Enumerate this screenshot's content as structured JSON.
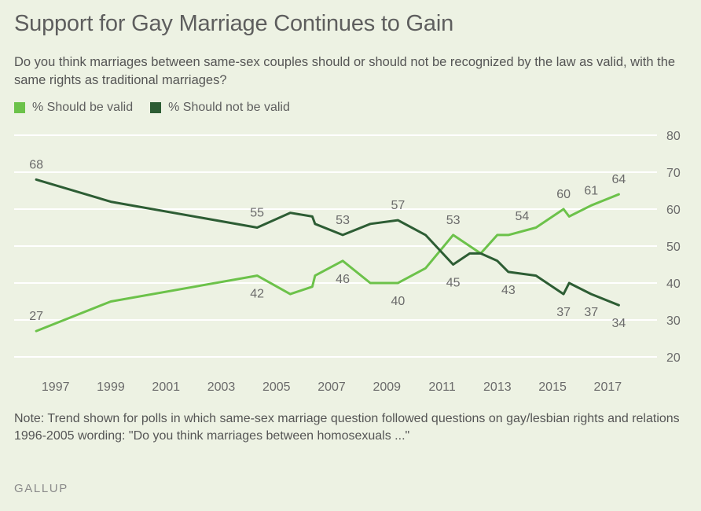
{
  "title": "Support for Gay Marriage Continues to Gain",
  "subtitle": "Do you think marriages between same-sex couples should or should not be recognized by the law as valid, with the same rights as traditional marriages?",
  "note_line1": "Note: Trend shown for polls in which same-sex marriage question followed questions on gay/lesbian rights and relations",
  "note_line2": "1996-2005 wording: \"Do you think marriages between homosexuals ...\"",
  "brand": "GALLUP",
  "colors": {
    "valid": "#6cc24a",
    "not_valid": "#2d5d34",
    "grid": "#ffffff",
    "text": "#555555"
  },
  "chart_data": {
    "type": "line",
    "title": "Support for Gay Marriage Continues to Gain",
    "xlabel": "",
    "ylabel": "",
    "xlim": [
      1995.5,
      2018.1
    ],
    "ylim": [
      20,
      80
    ],
    "y_ticks": [
      20,
      30,
      40,
      50,
      60,
      70,
      80
    ],
    "x_ticks": [
      1997,
      1999,
      2001,
      2003,
      2005,
      2007,
      2009,
      2011,
      2013,
      2015,
      2017
    ],
    "grid": true,
    "legend": "top-left",
    "series": [
      {
        "name": "% Should be valid",
        "color": "#6cc24a",
        "x": [
          1996.3,
          1999.0,
          2004.3,
          2005.5,
          2006.3,
          2006.4,
          2007.4,
          2008.4,
          2009.4,
          2010.4,
          2011.4,
          2012.4,
          2013.0,
          2013.4,
          2014.4,
          2015.4,
          2015.6,
          2016.4,
          2017.4
        ],
        "values": [
          27,
          35,
          42,
          37,
          39,
          42,
          46,
          40,
          40,
          44,
          53,
          48,
          53,
          53,
          55,
          60,
          58,
          61,
          64
        ]
      },
      {
        "name": "% Should not be valid",
        "color": "#2d5d34",
        "x": [
          1996.3,
          1999.0,
          2004.3,
          2005.5,
          2006.3,
          2006.4,
          2007.4,
          2008.4,
          2009.4,
          2010.4,
          2011.4,
          2012.0,
          2012.4,
          2013.0,
          2013.4,
          2014.4,
          2015.4,
          2015.6,
          2016.4,
          2017.4
        ],
        "values": [
          68,
          62,
          55,
          59,
          58,
          56,
          53,
          56,
          57,
          53,
          45,
          48,
          48,
          46,
          43,
          42,
          37,
          40,
          37,
          34
        ]
      }
    ],
    "annotations": [
      {
        "text": "27",
        "x": 1996.3,
        "y": 27,
        "series": "% Should be valid",
        "pos": "above"
      },
      {
        "text": "42",
        "x": 2004.3,
        "y": 42,
        "series": "% Should be valid",
        "pos": "below"
      },
      {
        "text": "46",
        "x": 2007.4,
        "y": 46,
        "series": "% Should be valid",
        "pos": "below"
      },
      {
        "text": "40",
        "x": 2009.4,
        "y": 40,
        "series": "% Should be valid",
        "pos": "below"
      },
      {
        "text": "53",
        "x": 2011.4,
        "y": 53,
        "series": "% Should be valid",
        "pos": "above"
      },
      {
        "text": "54",
        "x": 2013.9,
        "y": 54,
        "series": "% Should be valid",
        "pos": "above"
      },
      {
        "text": "60",
        "x": 2015.4,
        "y": 60,
        "series": "% Should be valid",
        "pos": "above"
      },
      {
        "text": "61",
        "x": 2016.4,
        "y": 61,
        "series": "% Should be valid",
        "pos": "above"
      },
      {
        "text": "64",
        "x": 2017.4,
        "y": 64,
        "series": "% Should be valid",
        "pos": "above"
      },
      {
        "text": "68",
        "x": 1996.3,
        "y": 68,
        "series": "% Should not be valid",
        "pos": "above"
      },
      {
        "text": "55",
        "x": 2004.3,
        "y": 55,
        "series": "% Should not be valid",
        "pos": "above"
      },
      {
        "text": "53",
        "x": 2007.4,
        "y": 53,
        "series": "% Should not be valid",
        "pos": "above"
      },
      {
        "text": "57",
        "x": 2009.4,
        "y": 57,
        "series": "% Should not be valid",
        "pos": "above"
      },
      {
        "text": "45",
        "x": 2011.4,
        "y": 45,
        "series": "% Should not be valid",
        "pos": "below"
      },
      {
        "text": "43",
        "x": 2013.4,
        "y": 43,
        "series": "% Should not be valid",
        "pos": "below"
      },
      {
        "text": "37",
        "x": 2015.4,
        "y": 37,
        "series": "% Should not be valid",
        "pos": "below"
      },
      {
        "text": "37",
        "x": 2016.4,
        "y": 37,
        "series": "% Should not be valid",
        "pos": "below"
      },
      {
        "text": "34",
        "x": 2017.4,
        "y": 34,
        "series": "% Should not be valid",
        "pos": "below"
      }
    ]
  }
}
